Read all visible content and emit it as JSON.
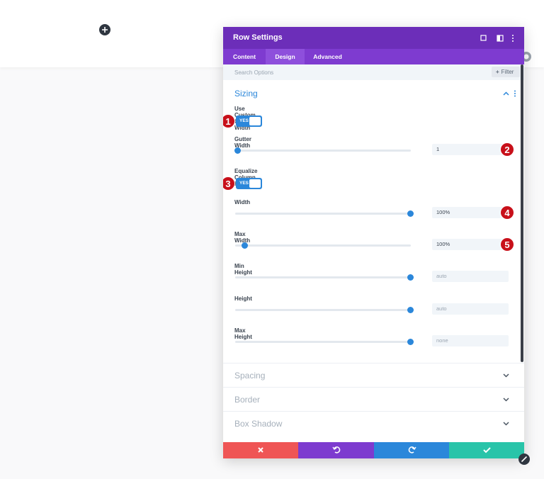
{
  "panel": {
    "title": "Row Settings",
    "tabs": [
      "Content",
      "Design",
      "Advanced"
    ],
    "search_placeholder": "Search Options",
    "filter_button": "Filter",
    "open_section": {
      "title": "Sizing",
      "fields": [
        {
          "label": "Use Custom Gutter Width",
          "toggle": "YES",
          "badge": "1"
        },
        {
          "label": "Gutter Width",
          "value": "1",
          "badge": "2"
        },
        {
          "label": "Equalize Column Heights",
          "toggle": "YES",
          "badge": "3"
        },
        {
          "label": "Width",
          "value": "100%",
          "badge": "4"
        },
        {
          "label": "Max Width",
          "value": "100%",
          "badge": "5"
        },
        {
          "label": "Min Height",
          "placeholder": "auto"
        },
        {
          "label": "Height",
          "placeholder": "auto"
        },
        {
          "label": "Max Height",
          "placeholder": "none"
        }
      ]
    },
    "closed_sections": [
      "Spacing",
      "Border",
      "Box Shadow"
    ]
  }
}
